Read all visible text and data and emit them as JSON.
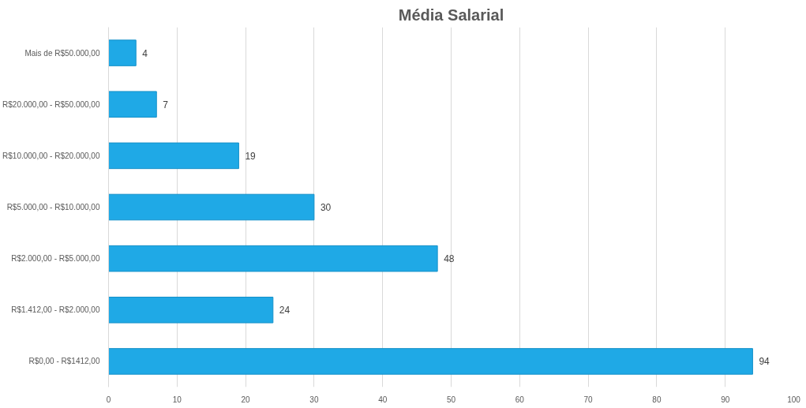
{
  "chart_data": {
    "type": "bar",
    "orientation": "horizontal",
    "title": "Média Salarial",
    "categories": [
      "Mais de R$50.000,00",
      "R$20.000,00 - R$50.000,00",
      "R$10.000,00 - R$20.000,00",
      "R$5.000,00 - R$10.000,00",
      "R$2.000,00 - R$5.000,00",
      "R$1.412,00 - R$2.000,00",
      "R$0,00 - R$1412,00"
    ],
    "values": [
      4,
      7,
      19,
      30,
      48,
      24,
      94
    ],
    "color": "#1fa9e6",
    "xlim": [
      0,
      100
    ],
    "xticks": [
      0,
      10,
      20,
      30,
      40,
      50,
      60,
      70,
      80,
      90,
      100
    ],
    "grid": "x",
    "data_labels": true
  }
}
